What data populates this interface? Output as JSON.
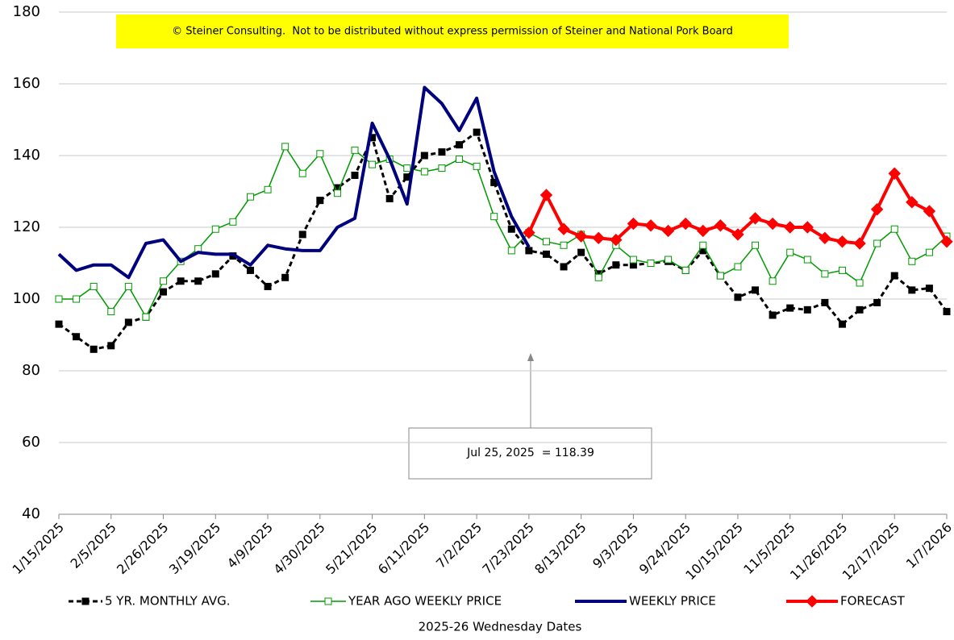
{
  "chart_data": {
    "type": "line",
    "xlabel": "2025-26 Wednesday Dates",
    "annotations": [
      "© Steiner Consulting.  Not to be distributed without express permission of Steiner and National Pork Board",
      "Jul 25, 2025  = 118.39"
    ],
    "categories": [
      "1/15/2025",
      null,
      null,
      "2/5/2025",
      null,
      null,
      "2/26/2025",
      null,
      null,
      "3/19/2025",
      null,
      null,
      "4/9/2025",
      null,
      null,
      "4/30/2025",
      null,
      null,
      "5/21/2025",
      null,
      null,
      "6/11/2025",
      null,
      null,
      "7/2/2025",
      null,
      null,
      "7/23/2025",
      null,
      null,
      "8/13/2025",
      null,
      null,
      "9/3/2025",
      null,
      null,
      "9/24/2025",
      null,
      null,
      "10/15/2025",
      null,
      null,
      "11/5/2025",
      null,
      null,
      "11/26/2025",
      null,
      null,
      "12/17/2025",
      null,
      null,
      "1/7/2026"
    ],
    "ylim": [
      40,
      180
    ],
    "yticks": [
      40,
      60,
      80,
      100,
      120,
      140,
      160,
      180
    ],
    "grid": true,
    "series": [
      {
        "name": "5 YR. MONTHLY AVG.",
        "color": "#000000",
        "marker": "square",
        "filled": true,
        "dashed": true,
        "width": 3,
        "values": [
          93,
          89.5,
          86,
          87,
          93.5,
          95,
          102,
          105,
          105,
          107,
          112,
          108,
          103.5,
          106,
          118,
          127.5,
          131,
          134.5,
          145,
          128,
          134,
          140,
          141,
          143,
          146.5,
          132.5,
          119.5,
          113.5,
          112.5,
          109,
          113,
          107,
          109.5,
          109.5,
          110,
          110.5,
          108,
          113.5,
          106.5,
          100.5,
          102.5,
          95.5,
          97.5,
          97,
          99,
          93,
          97,
          99,
          106.5,
          102.5,
          103,
          96.5
        ]
      },
      {
        "name": "YEAR AGO WEEKLY PRICE",
        "color": "#009900",
        "marker": "square",
        "filled": false,
        "dashed": false,
        "width": 1.5,
        "values": [
          100,
          100,
          103.5,
          96.5,
          103.5,
          95,
          105,
          110.5,
          114,
          119.5,
          121.5,
          128.5,
          130.5,
          142.5,
          135,
          140.5,
          129.5,
          141.5,
          137.5,
          139,
          136.5,
          135.5,
          136.5,
          139,
          137,
          123,
          113.5,
          118.5,
          116,
          115,
          118,
          106,
          115,
          111,
          110,
          111,
          108,
          115,
          106.5,
          109,
          115,
          105,
          113,
          111,
          107,
          108,
          104.5,
          115.5,
          119.5,
          110.5,
          113,
          117.5
        ]
      },
      {
        "name": "WEEKLY PRICE",
        "color": "#00007f",
        "marker": "none",
        "filled": true,
        "dashed": false,
        "width": 4,
        "values": [
          112.5,
          108,
          109.5,
          109.5,
          106,
          115.5,
          116.5,
          110.5,
          113,
          112.5,
          112.5,
          109.5,
          115,
          114,
          113.5,
          113.5,
          120,
          122.5,
          149,
          139,
          126.5,
          159,
          154.5,
          147,
          156,
          135.5,
          123,
          114.5,
          null,
          null,
          null,
          null,
          null,
          null,
          null,
          null,
          null,
          null,
          null,
          null,
          null,
          null,
          null,
          null,
          null,
          null,
          null,
          null,
          null,
          null,
          null,
          null
        ]
      },
      {
        "name": "FORECAST",
        "color": "#ff0000",
        "marker": "diamond",
        "filled": true,
        "dashed": false,
        "width": 4,
        "values": [
          null,
          null,
          null,
          null,
          null,
          null,
          null,
          null,
          null,
          null,
          null,
          null,
          null,
          null,
          null,
          null,
          null,
          null,
          null,
          null,
          null,
          null,
          null,
          null,
          null,
          null,
          null,
          118.5,
          129,
          119.5,
          117.5,
          117,
          116.5,
          121,
          120.5,
          119,
          121,
          119,
          120.5,
          118,
          122.5,
          121,
          120,
          120,
          117,
          116,
          115.5,
          125,
          135,
          127,
          124.5,
          116
        ]
      }
    ]
  }
}
